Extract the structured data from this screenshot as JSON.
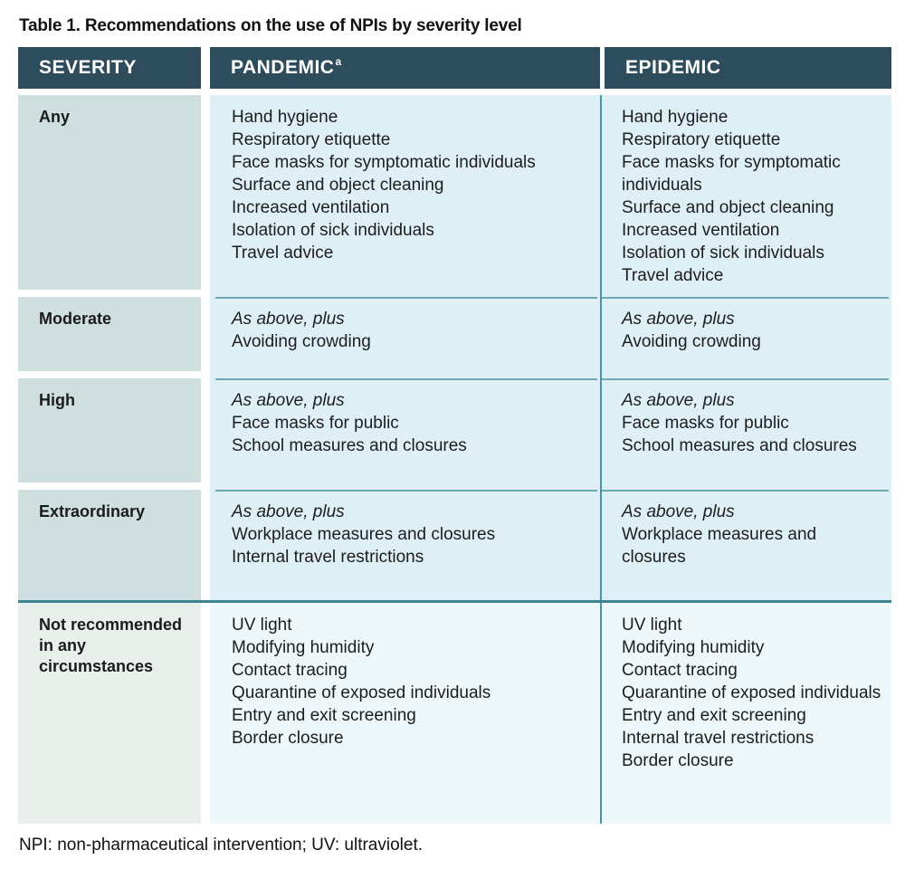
{
  "title": "Table 1. Recommendations on the use of NPIs by severity level",
  "footnote": "NPI: non-pharmaceutical intervention; UV: ultraviolet.",
  "colors": {
    "header_bg": "#2d4d5c",
    "header_text": "#ffffff",
    "severity_cell_bg": "#cfdede",
    "severity_cell_last_bg": "#e9f0ec",
    "data_cell_bg": "#def0f6",
    "data_cell_last_bg": "#eef7fa",
    "thin_divider": "#6aa9b4",
    "thick_divider": "#3a8391",
    "column_divider": "#4695a4",
    "body_text": "#1d1d1f"
  },
  "header": {
    "severity": "SEVERITY",
    "pandemic": "PANDEMIC",
    "pandemic_footnote_marker": "a",
    "epidemic": "EPIDEMIC"
  },
  "rows": [
    {
      "severity": "Any",
      "pandemic": {
        "lead": "",
        "items": [
          "Hand hygiene",
          "Respiratory etiquette",
          "Face masks for symptomatic individuals",
          "Surface and object cleaning",
          "Increased ventilation",
          "Isolation of sick individuals",
          "Travel advice"
        ]
      },
      "epidemic": {
        "lead": "",
        "items": [
          "Hand hygiene",
          "Respiratory etiquette",
          "Face masks for symptomatic individuals",
          "Surface and object cleaning",
          "Increased ventilation",
          "Isolation of sick individuals",
          "Travel advice"
        ]
      }
    },
    {
      "severity": "Moderate",
      "pandemic": {
        "lead": "As above, plus",
        "items": [
          "Avoiding crowding"
        ]
      },
      "epidemic": {
        "lead": "As above, plus",
        "items": [
          "Avoiding crowding"
        ]
      }
    },
    {
      "severity": "High",
      "pandemic": {
        "lead": "As above, plus",
        "items": [
          "Face masks for public",
          "School measures and closures"
        ]
      },
      "epidemic": {
        "lead": "As above, plus",
        "items": [
          "Face masks for public",
          "School measures and closures"
        ]
      }
    },
    {
      "severity": "Extraordinary",
      "pandemic": {
        "lead": "As above, plus",
        "items": [
          "Workplace measures and closures",
          "Internal travel restrictions"
        ]
      },
      "epidemic": {
        "lead": "As above, plus",
        "items": [
          "Workplace measures and closures"
        ]
      }
    },
    {
      "severity": "Not recommended in any circumstances",
      "pandemic": {
        "lead": "",
        "items": [
          "UV light",
          "Modifying humidity",
          "Contact tracing",
          "Quarantine of exposed individuals",
          "Entry and exit screening",
          "Border closure"
        ]
      },
      "epidemic": {
        "lead": "",
        "items": [
          "UV light",
          "Modifying humidity",
          "Contact tracing",
          "Quarantine of exposed individuals",
          "Entry and exit screening",
          "Internal travel restrictions",
          "Border closure"
        ]
      }
    }
  ]
}
